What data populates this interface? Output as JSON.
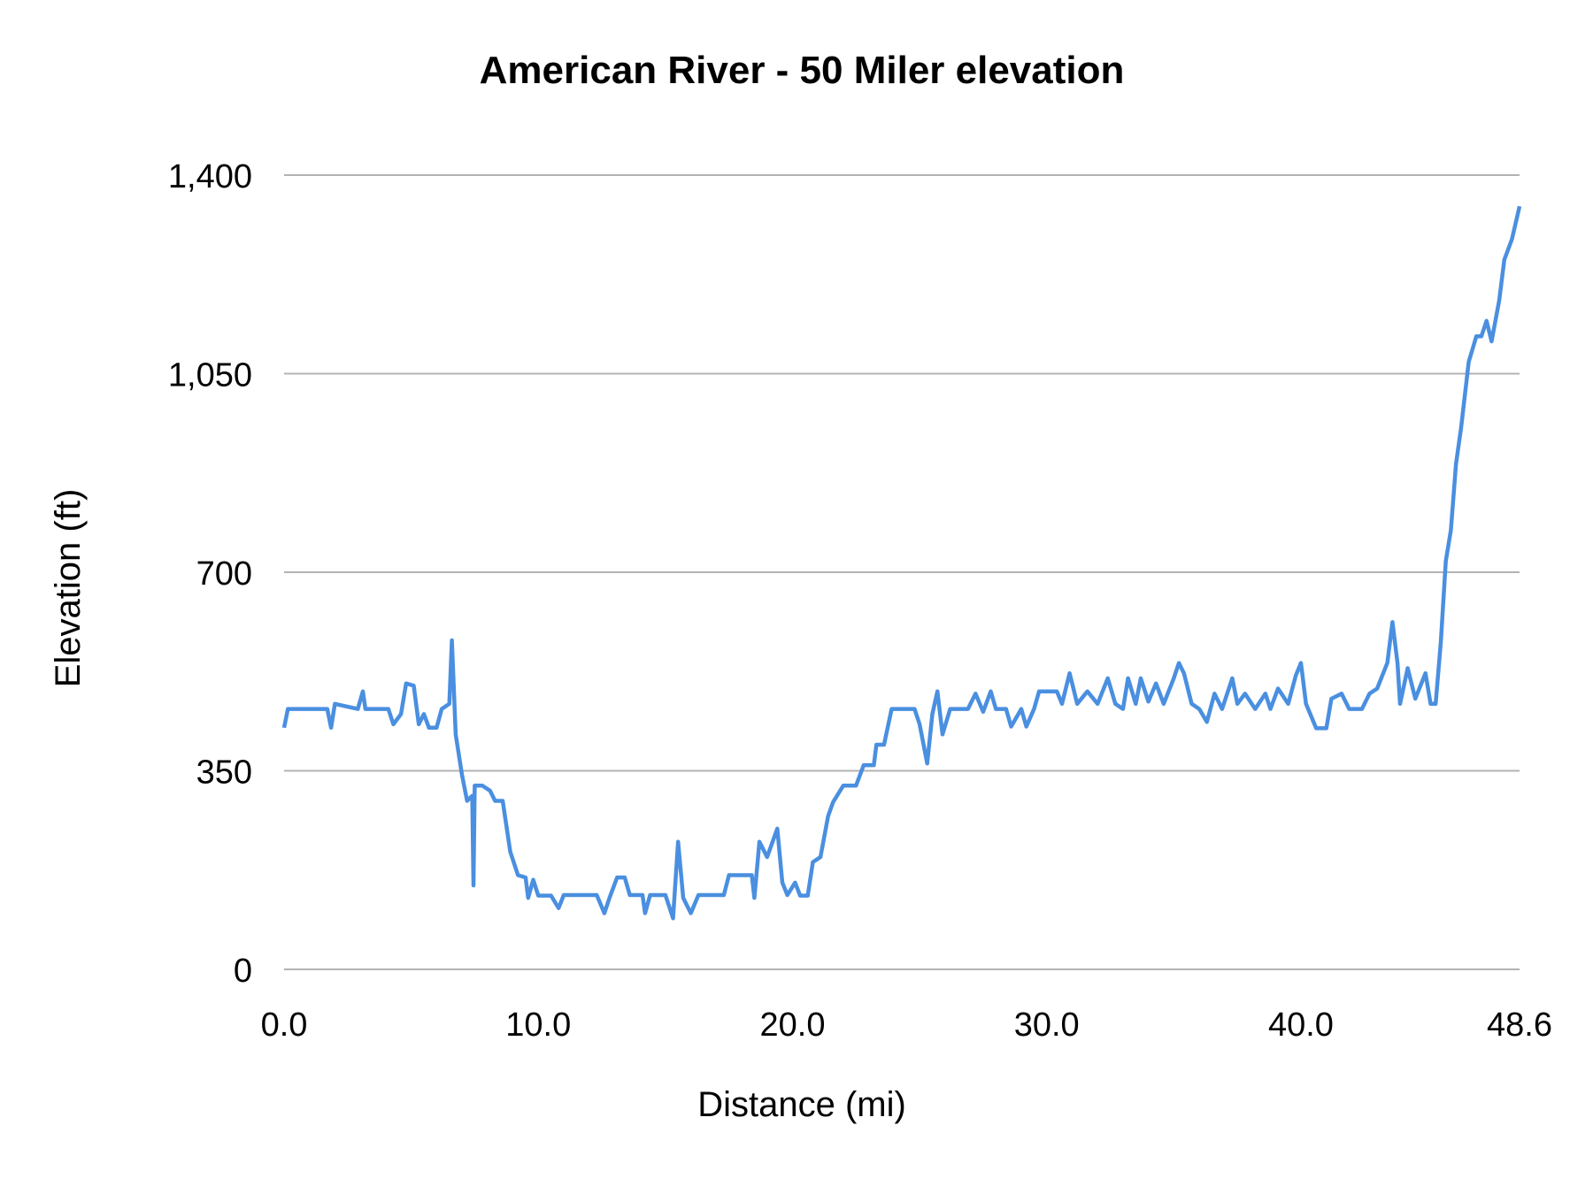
{
  "chart_data": {
    "type": "line",
    "title": "American River - 50 Miler elevation",
    "xlabel": "Distance (mi)",
    "ylabel": "Elevation (ft)",
    "xlim": [
      0,
      48.6
    ],
    "ylim": [
      0,
      1400
    ],
    "x_ticks": [
      "0.0",
      "10.0",
      "20.0",
      "30.0",
      "40.0",
      "48.6"
    ],
    "x_tick_values": [
      0,
      10,
      20,
      30,
      40,
      48.6
    ],
    "y_ticks": [
      "0",
      "350",
      "700",
      "1,050",
      "1,400"
    ],
    "y_tick_values": [
      0,
      350,
      700,
      1050,
      1400
    ],
    "grid": "horizontal",
    "line_color": "#4a8fe0",
    "grid_color": "#b3b3b3",
    "series": [
      {
        "x": [
          0,
          0.15,
          1.7,
          1.85,
          2.0,
          2.9,
          3.1,
          3.2,
          4.1,
          4.3,
          4.6,
          4.8,
          5.1,
          5.3,
          5.5,
          5.7,
          6.0,
          6.2,
          6.5,
          6.6,
          6.75,
          7.0,
          7.2,
          7.4,
          7.45,
          7.5,
          7.8,
          8.1,
          8.3,
          8.6,
          8.9,
          9.2,
          9.5,
          9.6,
          9.8,
          10.0,
          10.5,
          10.8,
          11.0,
          12.3,
          12.6,
          12.8,
          13.1,
          13.4,
          13.6,
          14.1,
          14.2,
          14.4,
          15.0,
          15.2,
          15.3,
          15.5,
          15.7,
          16.0,
          16.3,
          17.3,
          17.5,
          18.4,
          18.5,
          18.7,
          19.0,
          19.4,
          19.6,
          19.8,
          20.1,
          20.3,
          20.6,
          20.8,
          21.1,
          21.4,
          21.6,
          22.0,
          22.5,
          22.8,
          23.2,
          23.3,
          23.6,
          23.9,
          24.8,
          25.0,
          25.3,
          25.5,
          25.7,
          25.9,
          26.2,
          26.9,
          27.2,
          27.5,
          27.8,
          28.0,
          28.4,
          28.6,
          29.0,
          29.2,
          29.5,
          29.7,
          30.4,
          30.6,
          30.9,
          31.2,
          31.6,
          32.0,
          32.4,
          32.7,
          33.0,
          33.2,
          33.5,
          33.7,
          34.0,
          34.3,
          34.6,
          35.0,
          35.2,
          35.4,
          35.7,
          36.0,
          36.3,
          36.6,
          36.9,
          37.3,
          37.5,
          37.8,
          38.2,
          38.6,
          38.8,
          39.1,
          39.5,
          39.8,
          40.0,
          40.2,
          40.6,
          41.0,
          41.2,
          41.6,
          41.9,
          42.4,
          42.7,
          43.0,
          43.4,
          43.6,
          43.8,
          43.9,
          44.2,
          44.5,
          44.9,
          45.1,
          45.3,
          45.5,
          45.7,
          45.9,
          46.1,
          46.3,
          46.6,
          46.9,
          47.1,
          47.3,
          47.5,
          47.8,
          48.0,
          48.3,
          48.6
        ],
        "y": [
          426,
          459,
          459,
          426,
          468,
          459,
          490,
          459,
          459,
          432,
          450,
          504,
          500,
          432,
          450,
          426,
          426,
          459,
          468,
          580,
          414,
          342,
          297,
          306,
          148,
          324,
          324,
          315,
          297,
          297,
          207,
          166,
          162,
          126,
          158,
          130,
          130,
          108,
          131,
          131,
          99,
          126,
          162,
          162,
          131,
          131,
          99,
          131,
          131,
          104,
          90,
          225,
          126,
          99,
          131,
          131,
          166,
          166,
          126,
          225,
          198,
          248,
          153,
          131,
          153,
          130,
          130,
          189,
          198,
          270,
          295,
          324,
          324,
          360,
          360,
          396,
          396,
          459,
          459,
          432,
          363,
          450,
          490,
          414,
          459,
          459,
          486,
          454,
          490,
          459,
          459,
          428,
          459,
          428,
          459,
          490,
          490,
          468,
          522,
          468,
          490,
          468,
          513,
          468,
          459,
          513,
          468,
          513,
          472,
          504,
          468,
          513,
          540,
          522,
          468,
          459,
          436,
          486,
          459,
          513,
          468,
          486,
          459,
          486,
          459,
          495,
          468,
          518,
          540,
          468,
          425,
          425,
          477,
          486,
          459,
          459,
          486,
          495,
          540,
          612,
          540,
          468,
          531,
          477,
          522,
          468,
          468,
          576,
          720,
          774,
          891,
          954,
          1071,
          1116,
          1116,
          1143,
          1107,
          1179,
          1251,
          1287,
          1345
        ]
      }
    ]
  }
}
